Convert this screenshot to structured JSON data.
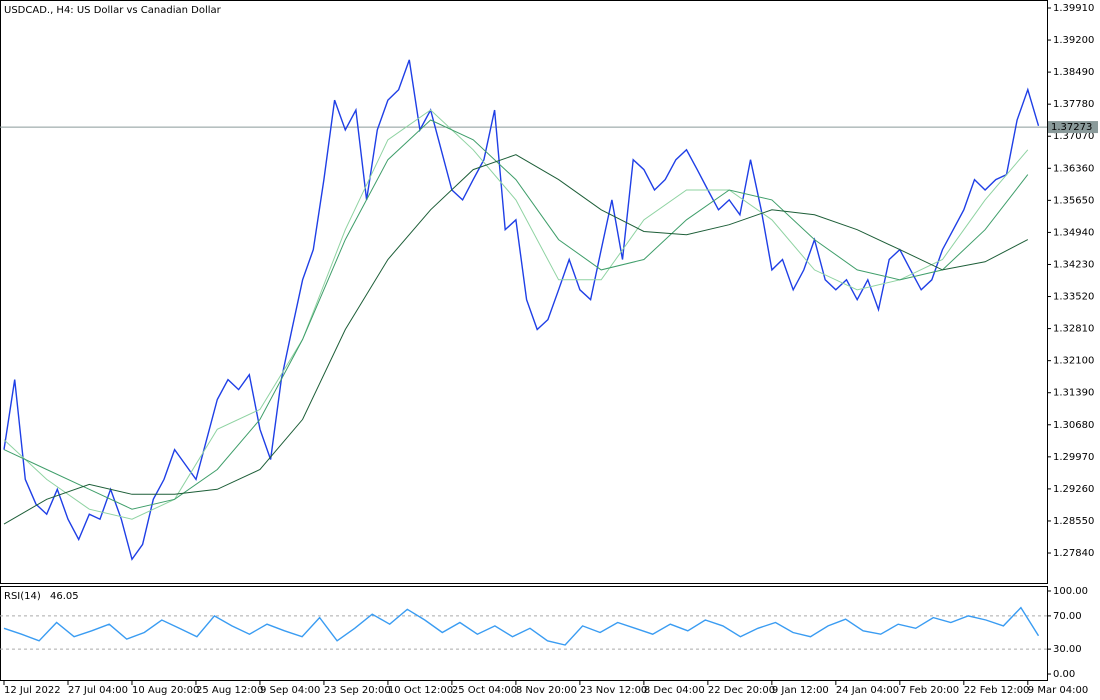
{
  "chart_data": [
    {
      "type": "line",
      "title": "USDCAD., H4:  US Dollar vs Canadian Dollar",
      "ylim": [
        1.27176,
        1.40087
      ],
      "xlim": [
        -0.375,
        97.8
      ],
      "yticks": [
        {
          "value": 1.3991,
          "label": "1.39910"
        },
        {
          "value": 1.392,
          "label": "1.39200"
        },
        {
          "value": 1.3849,
          "label": "1.38490"
        },
        {
          "value": 1.3778,
          "label": "1.37780"
        },
        {
          "value": 1.3707,
          "label": "1.37070"
        },
        {
          "value": 1.3636,
          "label": "1.36360"
        },
        {
          "value": 1.3565,
          "label": "1.35650"
        },
        {
          "value": 1.3494,
          "label": "1.34940"
        },
        {
          "value": 1.3423,
          "label": "1.34230"
        },
        {
          "value": 1.3352,
          "label": "1.33520"
        },
        {
          "value": 1.3281,
          "label": "1.32810"
        },
        {
          "value": 1.321,
          "label": "1.32100"
        },
        {
          "value": 1.3139,
          "label": "1.31390"
        },
        {
          "value": 1.3068,
          "label": "1.30680"
        },
        {
          "value": 1.2997,
          "label": "1.29970"
        },
        {
          "value": 1.2926,
          "label": "1.29260"
        },
        {
          "value": 1.2855,
          "label": "1.28550"
        },
        {
          "value": 1.2784,
          "label": "1.27840"
        }
      ],
      "xticks": [
        {
          "value": 0,
          "label": "12 Jul 2022"
        },
        {
          "value": 6,
          "label": "27 Jul 04:00"
        },
        {
          "value": 12,
          "label": "10 Aug 20:00"
        },
        {
          "value": 18,
          "label": "25 Aug 12:00"
        },
        {
          "value": 24,
          "label": "9 Sep 04:00"
        },
        {
          "value": 30,
          "label": "23 Sep 20:00"
        },
        {
          "value": 36,
          "label": "10 Oct 12:00"
        },
        {
          "value": 42,
          "label": "25 Oct 04:00"
        },
        {
          "value": 48,
          "label": "8 Nov 20:00"
        },
        {
          "value": 54,
          "label": "23 Nov 12:00"
        },
        {
          "value": 60,
          "label": "8 Dec 04:00"
        },
        {
          "value": 66,
          "label": "22 Dec 20:00"
        },
        {
          "value": 72,
          "label": "9 Jan 12:00"
        },
        {
          "value": 78,
          "label": "24 Jan 04:00"
        },
        {
          "value": 84,
          "label": "7 Feb 20:00"
        },
        {
          "value": 90,
          "label": "22 Feb 12:00"
        },
        {
          "value": 96,
          "label": "9 Mar 04:00"
        }
      ],
      "last_price": 1.37273,
      "series": [
        {
          "color": "#1f3fe6",
          "values": [
            1.3013,
            1.3168,
            1.2947,
            1.2892,
            1.287,
            1.2925,
            1.2859,
            1.2814,
            1.287,
            1.2859,
            1.2925,
            1.2859,
            1.277,
            1.2803,
            1.2903,
            1.2947,
            1.3013,
            1.298,
            1.2947,
            1.3035,
            1.3124,
            1.3168,
            1.3146,
            1.3179,
            1.3058,
            1.2991,
            1.3168,
            1.3279,
            1.3389,
            1.3456,
            1.3611,
            1.3787,
            1.3721,
            1.3765,
            1.3566,
            1.3721,
            1.3787,
            1.381,
            1.3876,
            1.3721,
            1.3765,
            1.3677,
            1.3588,
            1.3566,
            1.3611,
            1.3655,
            1.3765,
            1.35,
            1.3522,
            1.3345,
            1.3279,
            1.3301,
            1.3367,
            1.3434,
            1.3367,
            1.3345,
            1.3456,
            1.3566,
            1.3434,
            1.3655,
            1.3633,
            1.3588,
            1.3611,
            1.3655,
            1.3677,
            1.3633,
            1.3588,
            1.3544,
            1.3566,
            1.3533,
            1.3655,
            1.3544,
            1.3411,
            1.3434,
            1.3367,
            1.3411,
            1.3478,
            1.3389,
            1.3367,
            1.3389,
            1.3345,
            1.3389,
            1.3323,
            1.3434,
            1.3456,
            1.3411,
            1.3367,
            1.3389,
            1.3456,
            1.35,
            1.3544,
            1.3611,
            1.3588,
            1.3611,
            1.3622,
            1.3743,
            1.381,
            1.373
          ]
        },
        {
          "color": "#8fd3a2",
          "x": [
            0,
            4,
            8,
            12,
            16,
            20,
            24,
            28,
            32,
            36,
            40,
            44,
            48,
            52,
            56,
            60,
            64,
            68,
            72,
            76,
            80,
            84,
            88,
            92,
            96
          ],
          "values": [
            1.3035,
            1.2947,
            1.2881,
            1.2859,
            1.2903,
            1.3058,
            1.3102,
            1.3257,
            1.35,
            1.3699,
            1.3765,
            1.3677,
            1.3566,
            1.3389,
            1.3389,
            1.3522,
            1.3588,
            1.3588,
            1.3522,
            1.3411,
            1.3367,
            1.3389,
            1.3434,
            1.3566,
            1.3677
          ]
        },
        {
          "color": "#3f9e6a",
          "x": [
            0,
            4,
            8,
            12,
            16,
            20,
            24,
            28,
            32,
            36,
            40,
            44,
            48,
            52,
            56,
            60,
            64,
            68,
            72,
            76,
            80,
            84,
            88,
            92,
            96
          ],
          "values": [
            1.3013,
            1.2969,
            1.2925,
            1.2881,
            1.2903,
            1.2969,
            1.308,
            1.3257,
            1.3478,
            1.3655,
            1.3743,
            1.3699,
            1.3611,
            1.3478,
            1.3411,
            1.3434,
            1.3522,
            1.3588,
            1.3566,
            1.3478,
            1.3411,
            1.3389,
            1.3411,
            1.35,
            1.3622
          ]
        },
        {
          "color": "#1d5e38",
          "x": [
            0,
            4,
            8,
            12,
            16,
            20,
            24,
            28,
            32,
            36,
            40,
            44,
            48,
            52,
            56,
            60,
            64,
            68,
            72,
            76,
            80,
            84,
            88,
            92,
            96
          ],
          "values": [
            1.2848,
            1.2903,
            1.2936,
            1.2914,
            1.2914,
            1.2925,
            1.2969,
            1.308,
            1.3279,
            1.3434,
            1.3544,
            1.3633,
            1.3666,
            1.3611,
            1.3544,
            1.3496,
            1.3489,
            1.3511,
            1.3544,
            1.3533,
            1.35,
            1.3456,
            1.3411,
            1.3429,
            1.3478
          ]
        }
      ]
    },
    {
      "type": "line",
      "title": "RSI(14)",
      "last_value": 46.05,
      "ylim": [
        -7.2,
        106
      ],
      "yticks": [
        {
          "value": 100,
          "label": "100.00"
        },
        {
          "value": 70,
          "label": "70.00"
        },
        {
          "value": 30,
          "label": "30.00"
        },
        {
          "value": 0,
          "label": "0.00"
        }
      ],
      "grid_levels": [
        70,
        30
      ],
      "series": [
        {
          "color": "#3a9cf2",
          "values": [
            55,
            48,
            40,
            62,
            45,
            52,
            60,
            42,
            50,
            65,
            55,
            45,
            70,
            58,
            48,
            60,
            52,
            45,
            68,
            40,
            55,
            72,
            60,
            78,
            65,
            50,
            62,
            48,
            58,
            45,
            55,
            40,
            35,
            58,
            50,
            62,
            55,
            48,
            60,
            52,
            65,
            58,
            45,
            55,
            62,
            50,
            45,
            58,
            66,
            52,
            48,
            60,
            55,
            68,
            62,
            70,
            65,
            58,
            80,
            46
          ]
        }
      ]
    }
  ]
}
